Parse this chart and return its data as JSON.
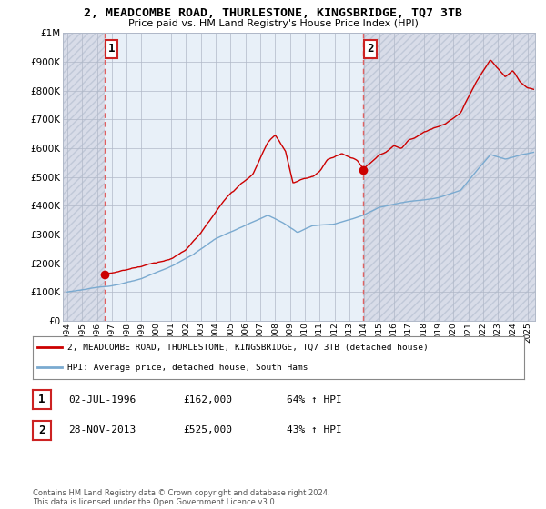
{
  "title": "2, MEADCOMBE ROAD, THURLESTONE, KINGSBRIDGE, TQ7 3TB",
  "subtitle": "Price paid vs. HM Land Registry's House Price Index (HPI)",
  "ytick_values": [
    0,
    100000,
    200000,
    300000,
    400000,
    500000,
    600000,
    700000,
    800000,
    900000,
    1000000
  ],
  "ylim": [
    0,
    1000000
  ],
  "xlim_start": 1993.7,
  "xlim_end": 2025.5,
  "sale1_date": 1996.5,
  "sale1_price": 162000,
  "sale1_label": "1",
  "sale1_text": "02-JUL-1996",
  "sale1_price_text": "£162,000",
  "sale1_hpi_text": "64% ↑ HPI",
  "sale2_date": 2013.92,
  "sale2_price": 525000,
  "sale2_label": "2",
  "sale2_text": "28-NOV-2013",
  "sale2_price_text": "£525,000",
  "sale2_hpi_text": "43% ↑ HPI",
  "legend_line1": "2, MEADCOMBE ROAD, THURLESTONE, KINGSBRIDGE, TQ7 3TB (detached house)",
  "legend_line2": "HPI: Average price, detached house, South Hams",
  "footer": "Contains HM Land Registry data © Crown copyright and database right 2024.\nThis data is licensed under the Open Government Licence v3.0.",
  "line_color_red": "#cc0000",
  "line_color_blue": "#7aaad0",
  "plot_bg": "#e8f0f8",
  "hatch_bg": "#d8dce8",
  "grid_color": "#b0b8c8",
  "dashed_line_color": "#e06060"
}
